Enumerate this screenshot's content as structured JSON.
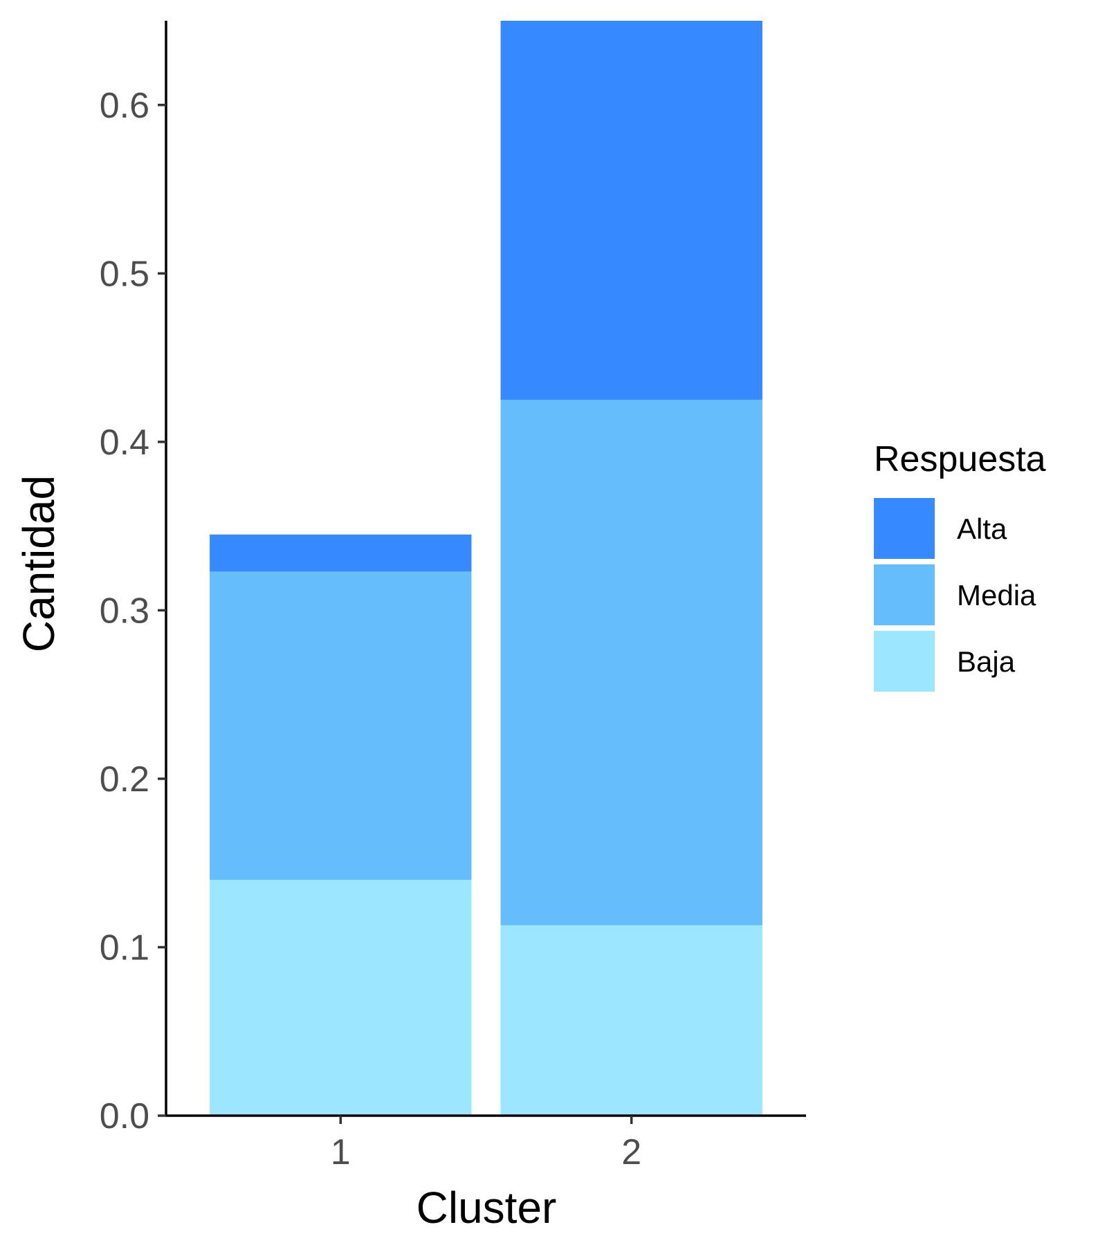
{
  "chart_data": {
    "type": "bar",
    "stacked": true,
    "categories": [
      "1",
      "2"
    ],
    "series": [
      {
        "name": "Baja",
        "color": "#9ce6ff",
        "values": [
          0.14,
          0.113
        ]
      },
      {
        "name": "Media",
        "color": "#66bdfc",
        "values": [
          0.183,
          0.312
        ]
      },
      {
        "name": "Alta",
        "color": "#3689fe",
        "values": [
          0.022,
          0.225
        ]
      }
    ],
    "xlabel": "Cluster",
    "ylabel": "Cantidad",
    "ylim": [
      0,
      0.65
    ],
    "yticks": [
      "0.0",
      "0.1",
      "0.2",
      "0.3",
      "0.4",
      "0.5",
      "0.6"
    ],
    "grid": false,
    "legend": {
      "title": "Respuesta",
      "position": "right",
      "order": [
        "Alta",
        "Media",
        "Baja"
      ]
    }
  }
}
